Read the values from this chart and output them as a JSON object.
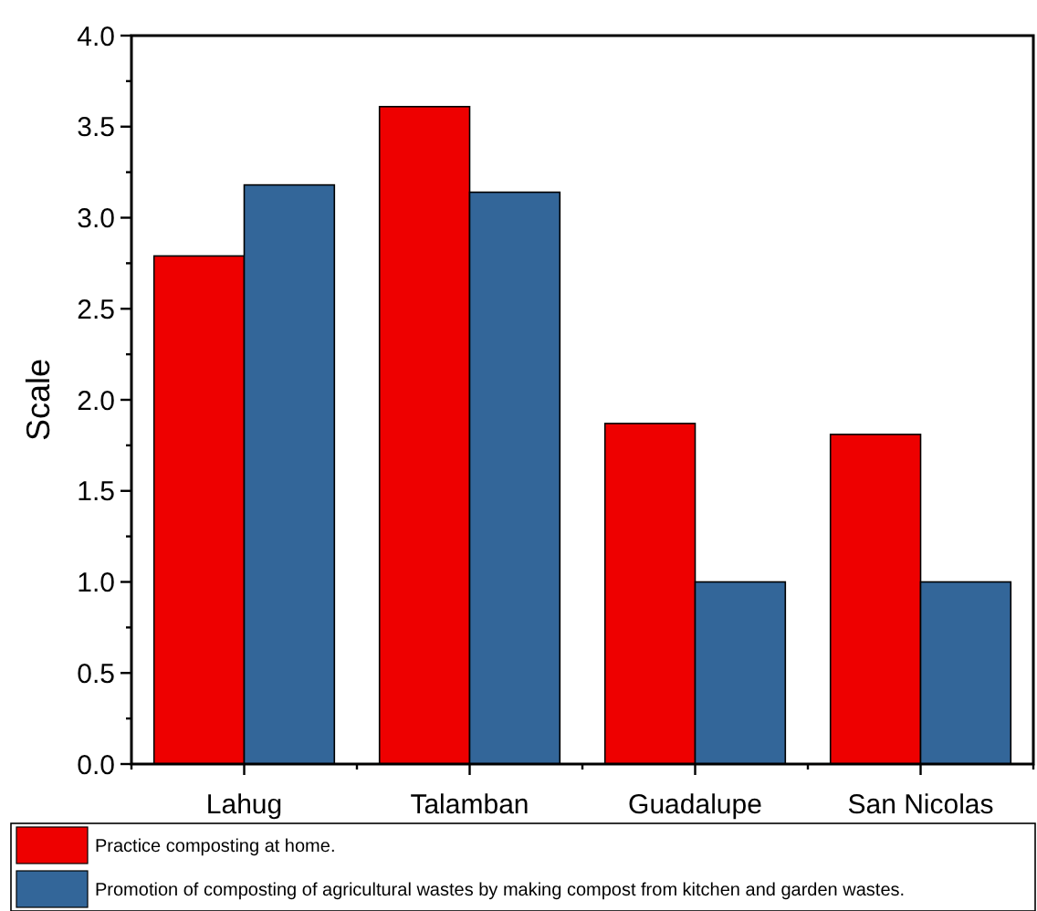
{
  "chart_data": {
    "type": "bar",
    "ylabel": "Scale",
    "categories": [
      "Lahug",
      "Talamban",
      "Guadalupe",
      "San Nicolas"
    ],
    "series": [
      {
        "name": "Practice composting at home.",
        "color": "#ee0000",
        "values": [
          2.79,
          3.61,
          1.87,
          1.81
        ]
      },
      {
        "name": "Promotion of composting of agricultural wastes by making compost from kitchen and garden wastes.",
        "color": "#336699",
        "values": [
          3.18,
          3.14,
          1.0,
          1.0
        ]
      }
    ],
    "ylim": [
      0,
      4
    ],
    "yticks": [
      {
        "value": 0,
        "label": "0.0"
      },
      {
        "value": 0.25,
        "label": null
      },
      {
        "value": 0.5,
        "label": "0.5"
      },
      {
        "value": 0.75,
        "label": null
      },
      {
        "value": 1,
        "label": "1.0"
      },
      {
        "value": 1.25,
        "label": null
      },
      {
        "value": 1.5,
        "label": "1.5"
      },
      {
        "value": 1.75,
        "label": null
      },
      {
        "value": 2,
        "label": "2.0"
      },
      {
        "value": 2.25,
        "label": null
      },
      {
        "value": 2.5,
        "label": "2.5"
      },
      {
        "value": 2.75,
        "label": null
      },
      {
        "value": 3,
        "label": "3.0"
      },
      {
        "value": 3.25,
        "label": null
      },
      {
        "value": 3.5,
        "label": "3.5"
      },
      {
        "value": 3.75,
        "label": null
      },
      {
        "value": 4,
        "label": "4.0"
      }
    ],
    "grid": false,
    "legend": "bottom"
  }
}
